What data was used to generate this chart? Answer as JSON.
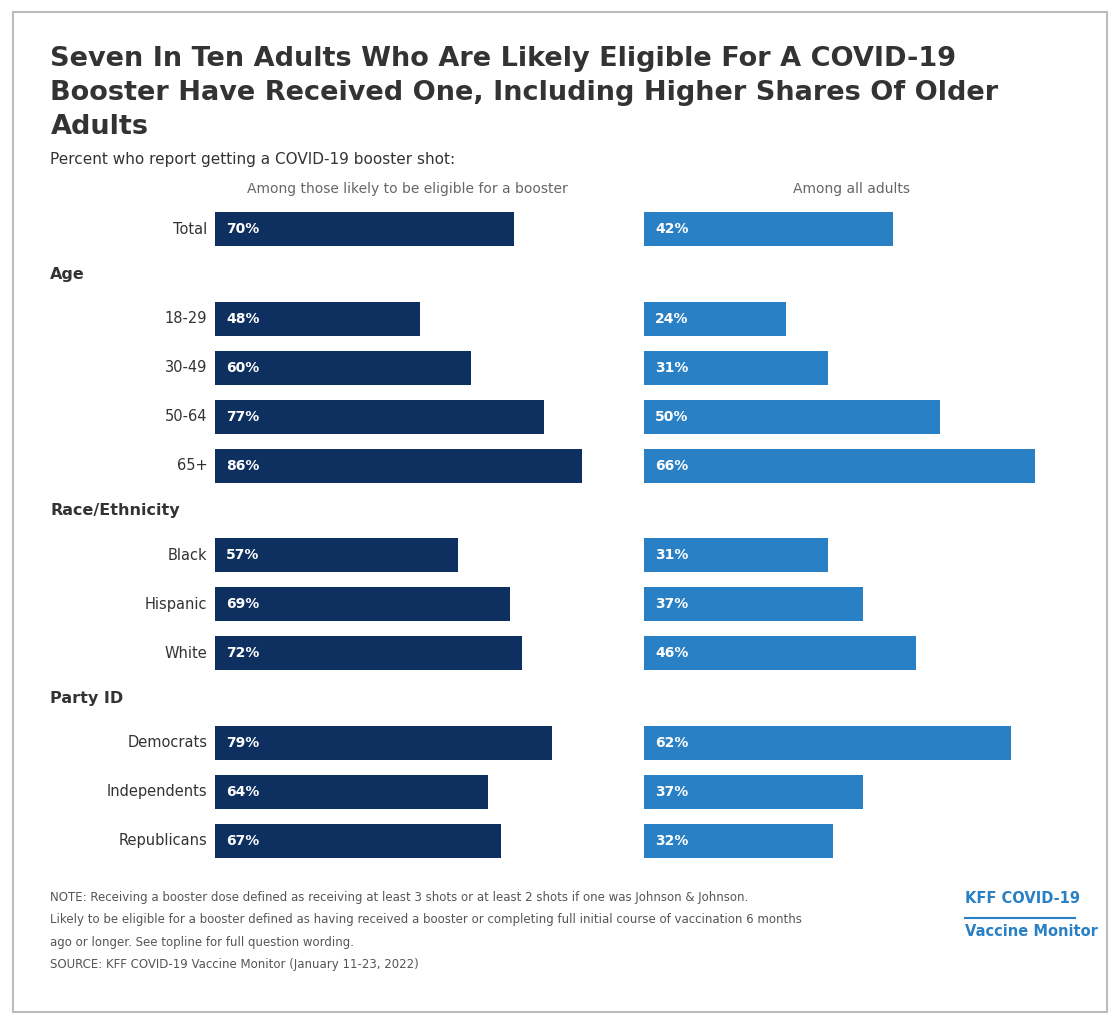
{
  "title_line1": "Seven In Ten Adults Who Are Likely Eligible For A COVID-19",
  "title_line2": "Booster Have Received One, Including Higher Shares Of Older",
  "title_line3": "Adults",
  "subtitle": "Percent who report getting a COVID-19 booster shot:",
  "col1_header": "Among those likely to be eligible for a booster",
  "col2_header": "Among all adults",
  "rows": [
    "Total",
    "18-29",
    "30-49",
    "50-64",
    "65+",
    "Black",
    "Hispanic",
    "White",
    "Democrats",
    "Independents",
    "Republicans"
  ],
  "section_before": {
    "18-29": "Age",
    "Black": "Race/Ethnicity",
    "Democrats": "Party ID"
  },
  "col1_values": {
    "Total": 70,
    "18-29": 48,
    "30-49": 60,
    "50-64": 77,
    "65+": 86,
    "Black": 57,
    "Hispanic": 69,
    "White": 72,
    "Democrats": 79,
    "Independents": 64,
    "Republicans": 67
  },
  "col2_values": {
    "Total": 42,
    "18-29": 24,
    "30-49": 31,
    "50-64": 50,
    "65+": 66,
    "Black": 31,
    "Hispanic": 37,
    "White": 46,
    "Democrats": 62,
    "Independents": 37,
    "Republicans": 32
  },
  "bar_color1": "#0d3060",
  "bar_color2": "#2980c4",
  "bg_color": "#ffffff",
  "text_color": "#333333",
  "header_color": "#666666",
  "note_text_line1": "NOTE: Receiving a booster dose defined as receiving at least 3 shots or at least 2 shots if one was Johnson & Johnson.",
  "note_text_line2": "Likely to be eligible for a booster defined as having received a booster or completing full initial course of vaccination 6 months",
  "note_text_line3": "ago or longer. See topline for full question wording.",
  "note_text_line4": "SOURCE: KFF COVID-19 Vaccine Monitor (January 11-23, 2022)",
  "kff_label1": "KFF COVID-19",
  "kff_label2": "Vaccine Monitor",
  "kff_color": "#2980c4",
  "col1_scale": 90,
  "col2_scale": 70
}
